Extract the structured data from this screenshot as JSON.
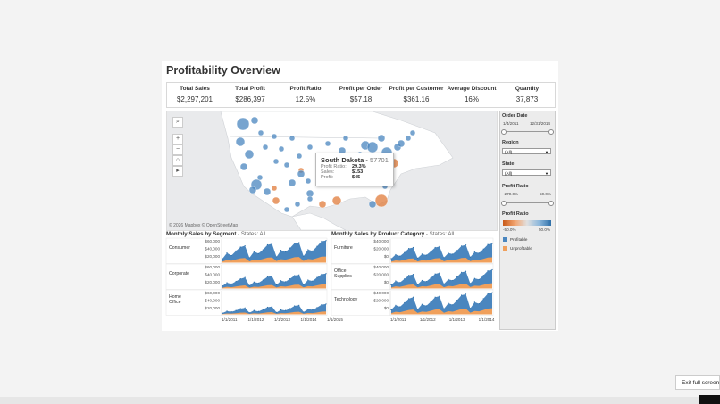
{
  "dashboard": {
    "title": "Profitability Overview",
    "kpis": [
      {
        "label": "Total Sales",
        "value": "$2,297,201"
      },
      {
        "label": "Total Profit",
        "value": "$286,397"
      },
      {
        "label": "Profit Ratio",
        "value": "12.5%"
      },
      {
        "label": "Profit per Order",
        "value": "$57.18"
      },
      {
        "label": "Profit per Customer",
        "value": "$361.16"
      },
      {
        "label": "Average Discount",
        "value": "16%"
      },
      {
        "label": "Quantity",
        "value": "37,873"
      }
    ]
  },
  "map": {
    "attribution": "© 2026 Mapbox © OpenStreetMap",
    "controls": [
      "search-icon",
      "zoom-in-icon",
      "zoom-out-icon",
      "home-icon",
      "play-icon"
    ],
    "tooltip": {
      "state": "South Dakota",
      "separator": " - ",
      "zip": "57701",
      "rows": [
        {
          "key": "Profit Ratio:",
          "value": "29.3%"
        },
        {
          "key": "Sales:",
          "value": "$153"
        },
        {
          "key": "Profit:",
          "value": "$45"
        }
      ]
    },
    "colors": {
      "profitable": "#4a86bf",
      "unprofitable": "#e07b39",
      "land": "#ffffff",
      "water": "#e9eaec"
    }
  },
  "filters": {
    "order_date": {
      "label": "Order Date",
      "start": "1/4/2011",
      "end": "12/31/2014"
    },
    "region": {
      "label": "Region",
      "selected": "(All)"
    },
    "state": {
      "label": "State",
      "selected": "(All)"
    },
    "profit_ratio": {
      "label": "Profit Ratio",
      "min": "-270.0%",
      "max": "50.0%"
    },
    "profit_ratio_legend": {
      "label": "Profit Ratio",
      "min": "-50.0%",
      "max": "50.0%"
    },
    "legend": [
      {
        "label": "Profitable",
        "color": "#4a86bf"
      },
      {
        "label": "Unprofitable",
        "color": "#f0a05c"
      }
    ]
  },
  "segment_chart": {
    "title": "Monthly Sales by Segment",
    "subtitle": " - States: All",
    "rows": [
      {
        "label": "Consumer",
        "ticks": [
          "$60,000",
          "$40,000",
          "$20,000"
        ]
      },
      {
        "label": "Corporate",
        "ticks": [
          "$60,000",
          "$40,000",
          "$20,000"
        ]
      },
      {
        "label": "Home Office",
        "ticks": [
          "$60,000",
          "$40,000",
          "$20,000"
        ]
      }
    ],
    "x_ticks": [
      "1/1/2011",
      "1/1/2012",
      "1/1/2013",
      "1/1/2014",
      "1/1/2015"
    ]
  },
  "category_chart": {
    "title": "Monthly Sales by Product Category",
    "subtitle": " - States: All",
    "rows": [
      {
        "label": "Furniture",
        "ticks": [
          "$40,000",
          "$20,000",
          "$0"
        ]
      },
      {
        "label": "Office Supplies",
        "ticks": [
          "$40,000",
          "$20,000",
          "$0"
        ]
      },
      {
        "label": "Technology",
        "ticks": [
          "$40,000",
          "$20,000",
          "$0"
        ]
      }
    ],
    "x_ticks": [
      "1/1/2011",
      "1/1/2012",
      "1/1/2013",
      "1/1/2014"
    ]
  },
  "chart_data": [
    {
      "type": "area",
      "title": "Monthly Sales by Segment",
      "x": [
        "2011-01",
        "2011-03",
        "2011-05",
        "2011-07",
        "2011-09",
        "2011-11",
        "2012-01",
        "2012-03",
        "2012-05",
        "2012-07",
        "2012-09",
        "2012-11",
        "2013-01",
        "2013-03",
        "2013-05",
        "2013-07",
        "2013-09",
        "2013-11",
        "2014-01",
        "2014-03",
        "2014-05",
        "2014-07",
        "2014-09",
        "2014-11"
      ],
      "ylim": [
        0,
        70000
      ],
      "series": [
        {
          "name": "Consumer",
          "values": [
            12000,
            30000,
            22000,
            36000,
            48000,
            52000,
            15000,
            34000,
            28000,
            40000,
            55000,
            58000,
            18000,
            38000,
            33000,
            45000,
            60000,
            62000,
            20000,
            40000,
            36000,
            50000,
            66000,
            68000
          ]
        },
        {
          "name": "Corporate",
          "values": [
            8000,
            18000,
            14000,
            22000,
            30000,
            34000,
            9000,
            20000,
            17000,
            26000,
            36000,
            38000,
            11000,
            24000,
            21000,
            30000,
            40000,
            42000,
            12000,
            26000,
            23000,
            34000,
            44000,
            46000
          ]
        },
        {
          "name": "Home Office",
          "values": [
            4000,
            10000,
            8000,
            12000,
            18000,
            20000,
            5000,
            12000,
            9000,
            15000,
            22000,
            24000,
            6000,
            14000,
            12000,
            18000,
            26000,
            28000,
            7000,
            16000,
            14000,
            21000,
            30000,
            32000
          ]
        }
      ]
    },
    {
      "type": "area",
      "title": "Monthly Sales by Product Category",
      "x": [
        "2011-01",
        "2011-03",
        "2011-05",
        "2011-07",
        "2011-09",
        "2011-11",
        "2012-01",
        "2012-03",
        "2012-05",
        "2012-07",
        "2012-09",
        "2012-11",
        "2013-01",
        "2013-03",
        "2013-05",
        "2013-07",
        "2013-09",
        "2013-11",
        "2014-01",
        "2014-03",
        "2014-05",
        "2014-07",
        "2014-09",
        "2014-11"
      ],
      "ylim": [
        0,
        45000
      ],
      "series": [
        {
          "name": "Furniture",
          "values": [
            8000,
            16000,
            13000,
            20000,
            28000,
            30000,
            9000,
            17000,
            15000,
            22000,
            30000,
            32000,
            10000,
            19000,
            17000,
            24000,
            33000,
            35000,
            11000,
            21000,
            19000,
            27000,
            36000,
            38000
          ]
        },
        {
          "name": "Office Supplies",
          "values": [
            7000,
            15000,
            12000,
            19000,
            26000,
            28000,
            8000,
            16000,
            14000,
            21000,
            29000,
            31000,
            9000,
            18000,
            16000,
            23000,
            32000,
            34000,
            10000,
            20000,
            18000,
            26000,
            35000,
            37000
          ]
        },
        {
          "name": "Technology",
          "values": [
            9000,
            18000,
            15000,
            23000,
            31000,
            34000,
            10000,
            20000,
            17000,
            25000,
            34000,
            36000,
            11000,
            22000,
            19000,
            28000,
            38000,
            40000,
            12000,
            24000,
            21000,
            31000,
            41000,
            43000
          ]
        }
      ]
    }
  ],
  "overlay": {
    "exit_label": "Exit full screen"
  }
}
